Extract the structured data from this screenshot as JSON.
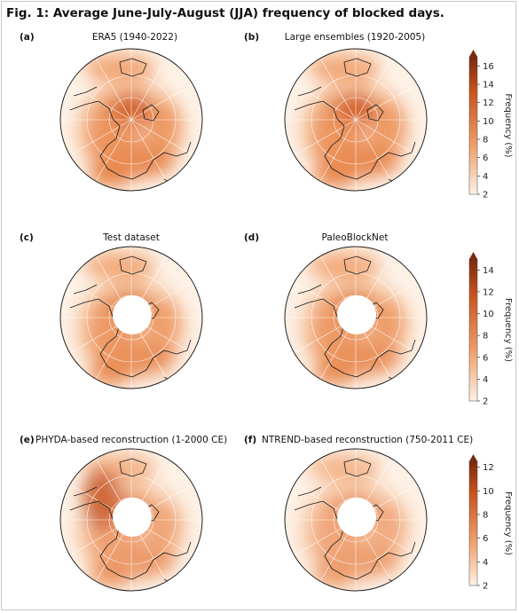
{
  "figure_title": "Fig. 1: Average June-July-August (JJA) frequency of blocked days.",
  "panels": [
    {
      "letter": "(a)",
      "title": "ERA5 (1940-2022)"
    },
    {
      "letter": "(b)",
      "title": "Large ensembles (1920-2005)"
    },
    {
      "letter": "(c)",
      "title": "Test dataset"
    },
    {
      "letter": "(d)",
      "title": "PaleoBlockNet"
    },
    {
      "letter": "(e)",
      "title": "PHYDA-based reconstruction (1-2000 CE)"
    },
    {
      "letter": "(f)",
      "title": "NTREND-based reconstruction (750-2011 CE)"
    }
  ],
  "colorbars": [
    {
      "label": "Frequency (%)",
      "ticks": [
        "2",
        "4",
        "6",
        "8",
        "10",
        "12",
        "14",
        "16"
      ],
      "vmin": 2,
      "vmax": 17
    },
    {
      "label": "Frequency (%)",
      "ticks": [
        "2",
        "4",
        "6",
        "8",
        "10",
        "12",
        "14"
      ],
      "vmin": 2,
      "vmax": 15
    },
    {
      "label": "Frequency (%)",
      "ticks": [
        "2",
        "4",
        "6",
        "8",
        "10",
        "12"
      ],
      "vmin": 2,
      "vmax": 12.5
    }
  ],
  "colors": {
    "low": "#fdf1e6",
    "mid": "#f0a06a",
    "high": "#c8521c",
    "peak": "#7a2a0e",
    "coast": "#1a1a1a"
  }
}
